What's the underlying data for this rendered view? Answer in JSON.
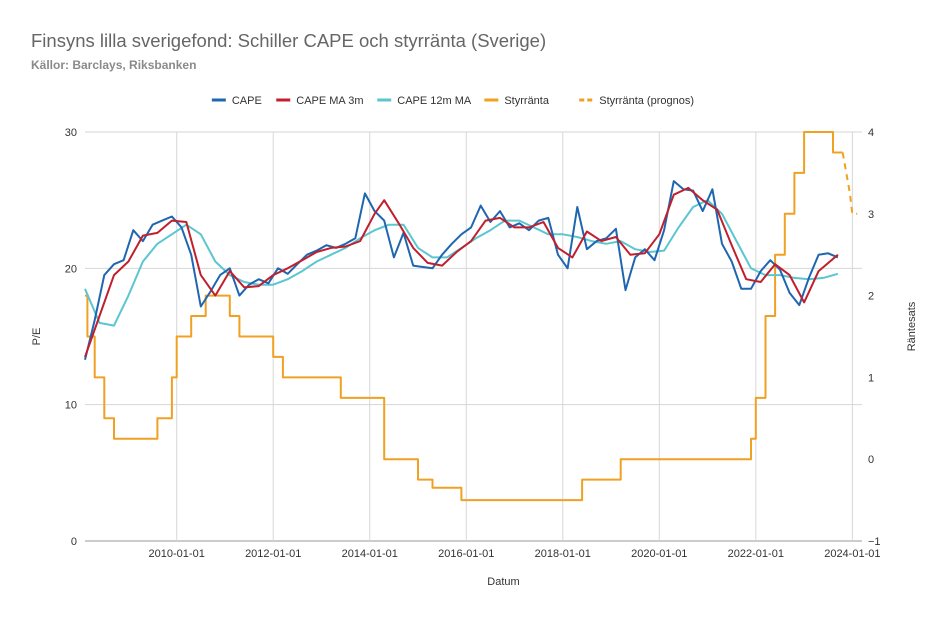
{
  "title": "Finsyns lilla sverigefond: Schiller CAPE och styrränta (Sverige)",
  "subtitle": "Källor: Barclays, Riksbanken",
  "chart_data": {
    "type": "line",
    "xlabel": "Datum",
    "ylabel": "P/E",
    "y2label": "Räntesats",
    "xlim": [
      2008.1,
      2024.2
    ],
    "ylim": [
      0,
      30
    ],
    "y2lim": [
      -1,
      4
    ],
    "x_ticks": [
      "2010-01-01",
      "2012-01-01",
      "2014-01-01",
      "2016-01-01",
      "2018-01-01",
      "2020-01-01",
      "2022-01-01",
      "2024-01-01"
    ],
    "y_ticks": [
      "0",
      "10",
      "20",
      "30"
    ],
    "y2_ticks": [
      "−1",
      "0",
      "1",
      "2",
      "3",
      "4"
    ],
    "grid": true,
    "legend_position": "top",
    "series": [
      {
        "name": "CAPE",
        "axis": "left",
        "color": "#1f66b0",
        "dash": false,
        "x": [
          2008.1,
          2008.3,
          2008.5,
          2008.7,
          2008.9,
          2009.1,
          2009.3,
          2009.5,
          2009.7,
          2009.9,
          2010.1,
          2010.3,
          2010.5,
          2010.7,
          2010.9,
          2011.1,
          2011.3,
          2011.5,
          2011.7,
          2011.9,
          2012.1,
          2012.3,
          2012.5,
          2012.7,
          2012.9,
          2013.1,
          2013.3,
          2013.5,
          2013.7,
          2013.9,
          2014.1,
          2014.3,
          2014.5,
          2014.7,
          2014.9,
          2015.1,
          2015.3,
          2015.5,
          2015.7,
          2015.9,
          2016.1,
          2016.3,
          2016.5,
          2016.7,
          2016.9,
          2017.1,
          2017.3,
          2017.5,
          2017.7,
          2017.9,
          2018.1,
          2018.3,
          2018.5,
          2018.7,
          2018.9,
          2019.1,
          2019.3,
          2019.5,
          2019.7,
          2019.9,
          2020.1,
          2020.3,
          2020.5,
          2020.7,
          2020.9,
          2021.1,
          2021.3,
          2021.5,
          2021.7,
          2021.9,
          2022.1,
          2022.3,
          2022.5,
          2022.7,
          2022.9,
          2023.1,
          2023.3,
          2023.5,
          2023.7
        ],
        "y": [
          13.3,
          16.2,
          19.5,
          20.3,
          20.6,
          22.8,
          22.0,
          23.2,
          23.5,
          23.8,
          23.0,
          21.0,
          17.2,
          18.3,
          19.5,
          20.0,
          18.0,
          18.8,
          19.2,
          18.9,
          20.0,
          19.6,
          20.3,
          21.0,
          21.3,
          21.7,
          21.5,
          21.8,
          22.2,
          25.5,
          24.2,
          23.5,
          20.8,
          22.6,
          20.2,
          20.1,
          20.0,
          21.0,
          21.8,
          22.5,
          23.0,
          24.6,
          23.4,
          24.2,
          23.0,
          23.3,
          22.8,
          23.5,
          23.7,
          21.0,
          20.0,
          24.5,
          21.4,
          22.0,
          22.2,
          22.9,
          18.4,
          20.8,
          21.4,
          20.6,
          22.8,
          26.4,
          25.8,
          25.7,
          24.2,
          25.8,
          21.8,
          20.5,
          18.5,
          18.5,
          19.8,
          20.6,
          19.9,
          18.2,
          17.3,
          19.3,
          21.0,
          21.1,
          20.8
        ]
      },
      {
        "name": "CAPE MA 3m",
        "axis": "left",
        "color": "#c0202e",
        "dash": false,
        "x": [
          2008.1,
          2008.4,
          2008.7,
          2009.0,
          2009.3,
          2009.6,
          2009.9,
          2010.2,
          2010.5,
          2010.8,
          2011.1,
          2011.4,
          2011.7,
          2012.0,
          2012.3,
          2012.6,
          2012.9,
          2013.2,
          2013.5,
          2013.8,
          2014.1,
          2014.3,
          2014.6,
          2014.9,
          2015.2,
          2015.5,
          2015.8,
          2016.1,
          2016.4,
          2016.7,
          2017.0,
          2017.3,
          2017.6,
          2017.9,
          2018.2,
          2018.5,
          2018.8,
          2019.1,
          2019.4,
          2019.7,
          2020.0,
          2020.3,
          2020.6,
          2020.9,
          2021.2,
          2021.5,
          2021.8,
          2022.1,
          2022.4,
          2022.7,
          2023.0,
          2023.3,
          2023.7
        ],
        "y": [
          13.5,
          16.5,
          19.5,
          20.5,
          22.4,
          22.6,
          23.5,
          23.4,
          19.5,
          18.0,
          19.8,
          18.6,
          18.7,
          19.5,
          20.0,
          20.6,
          21.2,
          21.5,
          21.6,
          22.0,
          24.0,
          25.0,
          23.3,
          21.5,
          20.4,
          20.2,
          21.2,
          22.0,
          23.5,
          23.7,
          23.0,
          23.0,
          23.4,
          21.5,
          20.8,
          22.7,
          22.0,
          22.3,
          21.0,
          21.1,
          22.5,
          25.4,
          25.9,
          25.0,
          24.3,
          21.7,
          19.2,
          19.0,
          20.3,
          19.5,
          17.5,
          19.8,
          21.0
        ]
      },
      {
        "name": "CAPE 12m MA",
        "axis": "left",
        "color": "#5bc6d0",
        "dash": false,
        "x": [
          2008.1,
          2008.4,
          2008.7,
          2009.0,
          2009.3,
          2009.6,
          2009.9,
          2010.2,
          2010.5,
          2010.8,
          2011.1,
          2011.4,
          2011.7,
          2012.0,
          2012.3,
          2012.6,
          2012.9,
          2013.2,
          2013.5,
          2013.8,
          2014.1,
          2014.4,
          2014.7,
          2015.0,
          2015.3,
          2015.6,
          2015.9,
          2016.2,
          2016.5,
          2016.8,
          2017.1,
          2017.4,
          2017.7,
          2018.0,
          2018.3,
          2018.6,
          2018.9,
          2019.2,
          2019.5,
          2019.8,
          2020.1,
          2020.4,
          2020.7,
          2021.0,
          2021.3,
          2021.6,
          2021.9,
          2022.2,
          2022.5,
          2022.8,
          2023.1,
          2023.4,
          2023.7
        ],
        "y": [
          18.5,
          16.0,
          15.8,
          18.0,
          20.5,
          21.8,
          22.5,
          23.2,
          22.5,
          20.5,
          19.5,
          19.0,
          18.8,
          18.8,
          19.2,
          19.8,
          20.5,
          21.0,
          21.5,
          22.2,
          22.8,
          23.2,
          23.2,
          21.5,
          20.8,
          20.8,
          21.5,
          22.2,
          22.8,
          23.5,
          23.5,
          23.0,
          22.5,
          22.5,
          22.3,
          22.0,
          21.8,
          22.0,
          21.4,
          21.2,
          21.3,
          23.0,
          24.5,
          25.0,
          24.0,
          22.0,
          20.0,
          19.5,
          19.5,
          19.3,
          19.2,
          19.3,
          19.6
        ]
      },
      {
        "name": "Styrränta",
        "axis": "right",
        "color": "#f0a022",
        "dash": false,
        "x": [
          2008.1,
          2008.15,
          2008.3,
          2008.5,
          2008.7,
          2009.0,
          2009.2,
          2009.5,
          2009.6,
          2009.9,
          2010.0,
          2010.3,
          2010.6,
          2010.9,
          2011.1,
          2011.3,
          2011.5,
          2011.8,
          2012.0,
          2012.2,
          2012.4,
          2012.6,
          2013.0,
          2013.4,
          2013.8,
          2014.3,
          2014.6,
          2015.0,
          2015.3,
          2015.6,
          2015.9,
          2016.2,
          2016.5,
          2016.8,
          2017.2,
          2017.6,
          2018.0,
          2018.4,
          2018.8,
          2019.2,
          2019.6,
          2020.0,
          2020.4,
          2020.8,
          2021.2,
          2021.6,
          2021.9,
          2022.0,
          2022.2,
          2022.4,
          2022.6,
          2022.8,
          2023.0,
          2023.2,
          2023.4,
          2023.6,
          2023.8
        ],
        "y": [
          2.0,
          1.5,
          1.0,
          0.5,
          0.25,
          0.25,
          0.25,
          0.25,
          0.5,
          1.0,
          1.5,
          1.75,
          2.0,
          2.0,
          1.75,
          1.5,
          1.5,
          1.5,
          1.25,
          1.0,
          1.0,
          1.0,
          1.0,
          0.75,
          0.75,
          0.0,
          0.0,
          -0.25,
          -0.35,
          -0.35,
          -0.5,
          -0.5,
          -0.5,
          -0.5,
          -0.5,
          -0.5,
          -0.5,
          -0.25,
          -0.25,
          0.0,
          0.0,
          0.0,
          0.0,
          0.0,
          0.0,
          0.0,
          0.25,
          0.75,
          1.75,
          2.5,
          3.0,
          3.5,
          4.0,
          4.0,
          4.0,
          3.75,
          3.75
        ]
      },
      {
        "name": "Styrränta (prognos)",
        "axis": "right",
        "color": "#f0a022",
        "dash": true,
        "x": [
          2023.8,
          2023.95,
          2024.0,
          2024.1
        ],
        "y": [
          3.75,
          3.25,
          3.0,
          3.0
        ]
      }
    ]
  }
}
